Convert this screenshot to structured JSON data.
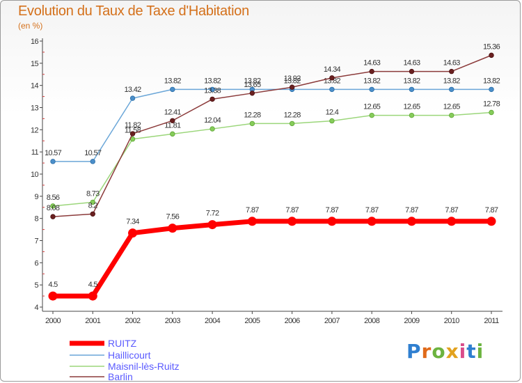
{
  "header": {
    "title": "Evolution du Taux de Taxe d'Habitation",
    "subtitle": "(en %)"
  },
  "logo": {
    "text": "Proxiti",
    "colors": [
      "#2f7fd0",
      "#e06a1a",
      "#6cb33f",
      "#e2a21f",
      "#d94c8a",
      "#2f7fd0",
      "#6cb33f"
    ]
  },
  "chart_data": {
    "type": "line",
    "categories": [
      "2000",
      "2001",
      "2002",
      "2003",
      "2004",
      "2005",
      "2006",
      "2007",
      "2008",
      "2009",
      "2010",
      "2011"
    ],
    "yticks": [
      "4",
      "5",
      "6",
      "7",
      "8",
      "9",
      "10",
      "11",
      "12",
      "13",
      "14",
      "15",
      "16"
    ],
    "ylim": [
      4,
      16
    ],
    "grid": false,
    "legend_position": "bottom-left",
    "series": [
      {
        "name": "RUITZ",
        "color": "#ff0000",
        "values": [
          4.5,
          4.5,
          7.34,
          7.56,
          7.72,
          7.87,
          7.87,
          7.87,
          7.87,
          7.87,
          7.87,
          7.87
        ],
        "labels": [
          "4.5",
          "4.5",
          "7.34",
          "7.56",
          "7.72",
          "7.87",
          "7.87",
          "7.87",
          "7.87",
          "7.87",
          "7.87",
          "7.87"
        ]
      },
      {
        "name": "Haillicourt",
        "color": "#6aa6d8",
        "values": [
          10.57,
          10.57,
          13.42,
          13.82,
          13.82,
          13.82,
          13.82,
          13.82,
          13.82,
          13.82,
          13.82,
          13.82
        ],
        "labels": [
          "10.57",
          "10.57",
          "13.42",
          "13.82",
          "13.82",
          "13.82",
          "13.82",
          "13.82",
          "13.82",
          "13.82",
          "13.82",
          "13.82"
        ]
      },
      {
        "name": "Maisnil-lès-Ruitz",
        "color": "#9bd67a",
        "values": [
          8.56,
          8.73,
          11.58,
          11.81,
          12.04,
          12.28,
          12.28,
          12.4,
          12.65,
          12.65,
          12.65,
          12.78
        ],
        "labels": [
          "8.56",
          "8.73",
          "11.58",
          "11.81",
          "12.04",
          "12.28",
          "12.28",
          "12.4",
          "12.65",
          "12.65",
          "12.65",
          "12.78"
        ]
      },
      {
        "name": "Barlin",
        "color": "#8b3a3a",
        "values": [
          8.08,
          8.2,
          11.82,
          12.41,
          13.38,
          13.65,
          13.92,
          14.34,
          14.63,
          14.63,
          14.63,
          15.36
        ],
        "labels": [
          "8.08",
          "8.2",
          "11.82",
          "12.41",
          "13.38",
          "13.65",
          "13.92",
          "14.34",
          "14.63",
          "14.63",
          "14.63",
          "15.36"
        ]
      }
    ]
  }
}
